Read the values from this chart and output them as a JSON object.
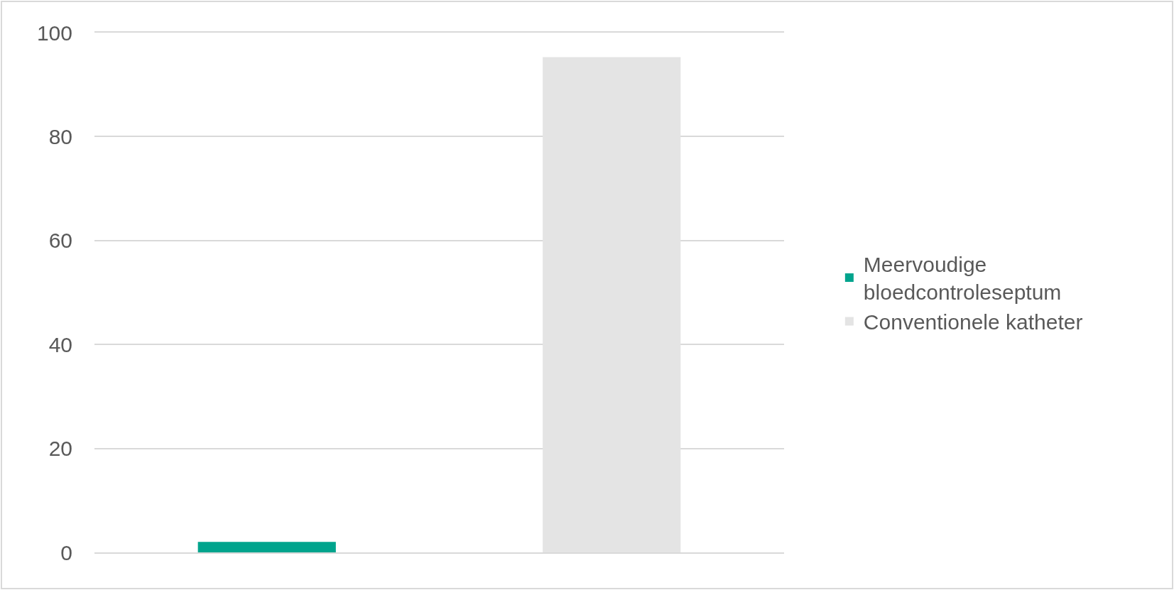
{
  "chart_data": {
    "type": "bar",
    "categories": [
      null
    ],
    "series": [
      {
        "name": "Meervoudige bloedcontroleseptum",
        "color": "#00a48d",
        "values": [
          2.0
        ]
      },
      {
        "name": "Conventionele katheter",
        "color": "#e4e4e4",
        "values": [
          95.3
        ]
      }
    ],
    "ylim": [
      0,
      100
    ],
    "yticks": [
      0,
      20,
      40,
      60,
      80,
      100
    ],
    "grid": "y",
    "legend": "right",
    "tick_labels": "y"
  }
}
